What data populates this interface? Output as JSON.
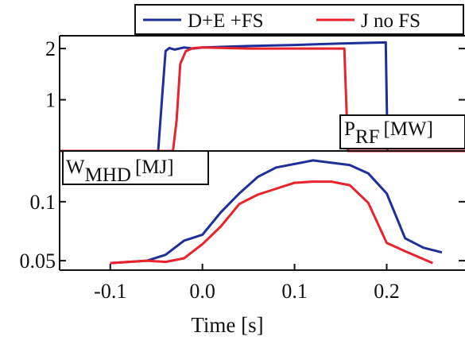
{
  "chart_data": [
    {
      "type": "line",
      "panel": "top",
      "label_main": "P",
      "label_sub": "RF",
      "label_unit": "[MW]",
      "xlim": [
        -0.155,
        0.285
      ],
      "ylim": [
        0,
        2.25
      ],
      "y_ticks": [
        {
          "value": 1,
          "label": "1"
        },
        {
          "value": 2,
          "label": "2"
        }
      ],
      "series": [
        {
          "name": "D+E +FS",
          "color": "#1f2f9a",
          "x": [
            -0.155,
            -0.048,
            -0.044,
            -0.04,
            -0.036,
            -0.03,
            -0.02,
            -0.01,
            0.0,
            0.05,
            0.1,
            0.15,
            0.199,
            0.2,
            0.201,
            0.204,
            0.285
          ],
          "y": [
            0,
            0,
            1.0,
            1.95,
            2.01,
            1.98,
            2.02,
            2.0,
            2.02,
            2.05,
            2.07,
            2.1,
            2.12,
            1.0,
            0.0,
            0,
            0
          ]
        },
        {
          "name": "J no FS",
          "color": "#e8232c",
          "x": [
            -0.155,
            -0.032,
            -0.028,
            -0.024,
            -0.018,
            -0.01,
            0.0,
            0.05,
            0.1,
            0.154,
            0.156,
            0.158,
            0.285
          ],
          "y": [
            0,
            0,
            0.6,
            1.7,
            1.95,
            2.01,
            2.02,
            2.0,
            2.0,
            2.0,
            1.0,
            0.0,
            0
          ]
        }
      ]
    },
    {
      "type": "line",
      "panel": "bottom",
      "label_main": "W",
      "label_sub": "MHD",
      "label_unit": "[MJ]",
      "xlim": [
        -0.155,
        0.285
      ],
      "ylim": [
        0.042,
        0.143
      ],
      "y_ticks": [
        {
          "value": 0.05,
          "label": "0.05"
        },
        {
          "value": 0.1,
          "label": "0.1"
        }
      ],
      "x_ticks": [
        {
          "value": -0.1,
          "label": "-0.1"
        },
        {
          "value": 0.0,
          "label": "0.0"
        },
        {
          "value": 0.1,
          "label": "0.1"
        },
        {
          "value": 0.2,
          "label": "0.2"
        }
      ],
      "xlabel": "Time [s]",
      "series": [
        {
          "name": "D+E +FS",
          "color": "#1f2f9a",
          "x": [
            -0.1,
            -0.06,
            -0.04,
            -0.02,
            0.0,
            0.02,
            0.04,
            0.06,
            0.08,
            0.12,
            0.16,
            0.18,
            0.2,
            0.22,
            0.24,
            0.26
          ],
          "y": [
            0.048,
            0.05,
            0.055,
            0.067,
            0.072,
            0.091,
            0.107,
            0.121,
            0.129,
            0.135,
            0.131,
            0.124,
            0.107,
            0.069,
            0.061,
            0.057
          ]
        },
        {
          "name": "J no FS",
          "color": "#e8232c",
          "x": [
            -0.1,
            -0.06,
            -0.04,
            -0.02,
            0.0,
            0.02,
            0.04,
            0.06,
            0.08,
            0.1,
            0.12,
            0.14,
            0.16,
            0.18,
            0.2,
            0.22,
            0.25
          ],
          "y": [
            0.048,
            0.05,
            0.049,
            0.052,
            0.064,
            0.079,
            0.098,
            0.106,
            0.111,
            0.116,
            0.117,
            0.117,
            0.114,
            0.099,
            0.065,
            0.058,
            0.048
          ]
        }
      ]
    }
  ],
  "legend": [
    {
      "label": "D+E +FS",
      "color": "#1f2f9a"
    },
    {
      "label": "J no FS",
      "color": "#e8232c"
    }
  ]
}
